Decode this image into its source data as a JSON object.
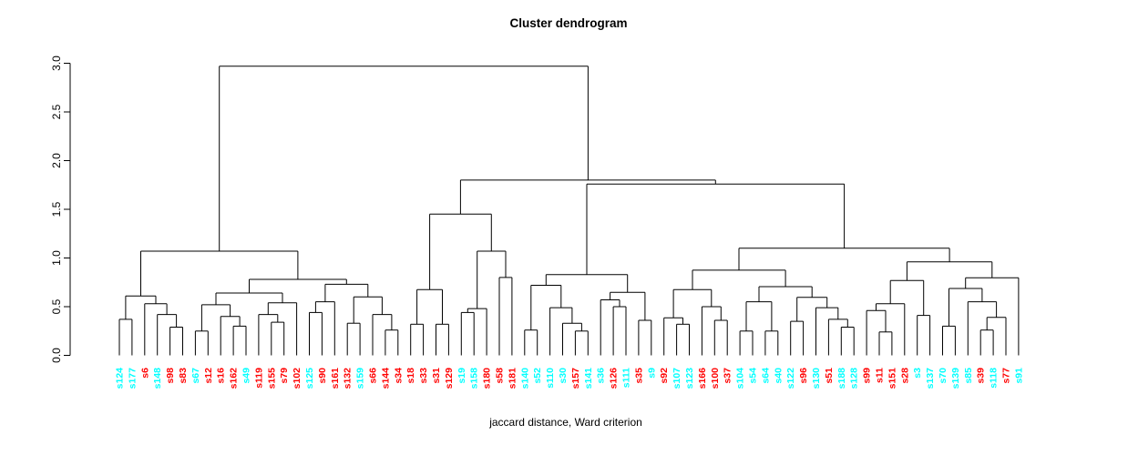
{
  "title": "Cluster dendrogram",
  "xlabel": "jaccard distance, Ward criterion",
  "chart_data": {
    "type": "dendrogram",
    "title": "Cluster dendrogram",
    "subtitle": "",
    "xlabel": "jaccard distance, Ward criterion",
    "ylabel": "",
    "grid": "off",
    "legend": "none",
    "y_axis": {
      "range": [
        0.0,
        3.0
      ],
      "ticks": [
        0.0,
        0.5,
        1.0,
        1.5,
        2.0,
        2.5,
        3.0
      ],
      "tick_labels": [
        "0.0",
        "0.5",
        "1.0",
        "1.5",
        "2.0",
        "2.5",
        "3.0"
      ]
    },
    "colors": {
      "line": "#000000",
      "text": "#000000",
      "cluster_cyan": "#00ffff",
      "cluster_red": "#ff0000"
    },
    "leaves": [
      {
        "label": "s124",
        "color": "cyan"
      },
      {
        "label": "s177",
        "color": "cyan"
      },
      {
        "label": "s6",
        "color": "red"
      },
      {
        "label": "s148",
        "color": "cyan"
      },
      {
        "label": "s98",
        "color": "red"
      },
      {
        "label": "s83",
        "color": "red"
      },
      {
        "label": "s67",
        "color": "cyan"
      },
      {
        "label": "s12",
        "color": "red"
      },
      {
        "label": "s16",
        "color": "red"
      },
      {
        "label": "s162",
        "color": "red"
      },
      {
        "label": "s49",
        "color": "cyan"
      },
      {
        "label": "s119",
        "color": "red"
      },
      {
        "label": "s155",
        "color": "red"
      },
      {
        "label": "s79",
        "color": "red"
      },
      {
        "label": "s102",
        "color": "red"
      },
      {
        "label": "s125",
        "color": "cyan"
      },
      {
        "label": "s90",
        "color": "red"
      },
      {
        "label": "s161",
        "color": "red"
      },
      {
        "label": "s132",
        "color": "red"
      },
      {
        "label": "s159",
        "color": "cyan"
      },
      {
        "label": "s66",
        "color": "red"
      },
      {
        "label": "s144",
        "color": "red"
      },
      {
        "label": "s34",
        "color": "red"
      },
      {
        "label": "s18",
        "color": "red"
      },
      {
        "label": "s33",
        "color": "red"
      },
      {
        "label": "s31",
        "color": "red"
      },
      {
        "label": "s129",
        "color": "red"
      },
      {
        "label": "s19",
        "color": "cyan"
      },
      {
        "label": "s158",
        "color": "cyan"
      },
      {
        "label": "s180",
        "color": "red"
      },
      {
        "label": "s58",
        "color": "red"
      },
      {
        "label": "s181",
        "color": "red"
      },
      {
        "label": "s140",
        "color": "cyan"
      },
      {
        "label": "s52",
        "color": "cyan"
      },
      {
        "label": "s110",
        "color": "cyan"
      },
      {
        "label": "s30",
        "color": "cyan"
      },
      {
        "label": "s157",
        "color": "red"
      },
      {
        "label": "s141",
        "color": "cyan"
      },
      {
        "label": "s36",
        "color": "cyan"
      },
      {
        "label": "s126",
        "color": "red"
      },
      {
        "label": "s111",
        "color": "cyan"
      },
      {
        "label": "s35",
        "color": "red"
      },
      {
        "label": "s9",
        "color": "cyan"
      },
      {
        "label": "s92",
        "color": "red"
      },
      {
        "label": "s107",
        "color": "cyan"
      },
      {
        "label": "s123",
        "color": "cyan"
      },
      {
        "label": "s166",
        "color": "red"
      },
      {
        "label": "s100",
        "color": "red"
      },
      {
        "label": "s37",
        "color": "red"
      },
      {
        "label": "s104",
        "color": "cyan"
      },
      {
        "label": "s54",
        "color": "cyan"
      },
      {
        "label": "s64",
        "color": "cyan"
      },
      {
        "label": "s40",
        "color": "cyan"
      },
      {
        "label": "s122",
        "color": "cyan"
      },
      {
        "label": "s96",
        "color": "red"
      },
      {
        "label": "s130",
        "color": "cyan"
      },
      {
        "label": "s51",
        "color": "red"
      },
      {
        "label": "s188",
        "color": "cyan"
      },
      {
        "label": "s128",
        "color": "cyan"
      },
      {
        "label": "s99",
        "color": "red"
      },
      {
        "label": "s11",
        "color": "red"
      },
      {
        "label": "s151",
        "color": "red"
      },
      {
        "label": "s28",
        "color": "red"
      },
      {
        "label": "s3",
        "color": "cyan"
      },
      {
        "label": "s137",
        "color": "cyan"
      },
      {
        "label": "s70",
        "color": "cyan"
      },
      {
        "label": "s139",
        "color": "cyan"
      },
      {
        "label": "s85",
        "color": "cyan"
      },
      {
        "label": "s39",
        "color": "red"
      },
      {
        "label": "s118",
        "color": "cyan"
      },
      {
        "label": "s77",
        "color": "red"
      },
      {
        "label": "s91",
        "color": "cyan"
      }
    ],
    "merges": [
      2.97,
      [
        1.07,
        [
          0.61,
          [
            0.37,
            "s124",
            "s177"
          ],
          [
            0.53,
            "s6",
            [
              0.42,
              "s148",
              [
                0.29,
                "s98",
                "s83"
              ]
            ]
          ]
        ],
        [
          0.78,
          [
            0.64,
            [
              0.52,
              [
                0.25,
                "s67",
                "s12"
              ],
              [
                0.4,
                "s16",
                [
                  0.3,
                  "s162",
                  "s49"
                ]
              ]
            ],
            [
              0.54,
              [
                0.42,
                "s119",
                [
                  0.34,
                  "s155",
                  "s79"
                ]
              ],
              "s102"
            ]
          ],
          [
            0.73,
            [
              0.55,
              [
                0.44,
                "s125",
                "s90"
              ],
              "s161"
            ],
            [
              0.6,
              [
                0.33,
                "s132",
                "s159"
              ],
              [
                0.42,
                "s66",
                [
                  0.26,
                  "s144",
                  "s34"
                ]
              ]
            ]
          ]
        ]
      ],
      [
        1.8,
        [
          1.45,
          [
            0.675,
            [
              0.32,
              "s18",
              "s33"
            ],
            [
              0.32,
              "s31",
              "s129"
            ]
          ],
          [
            1.07,
            [
              0.48,
              [
                0.44,
                "s19",
                "s158"
              ],
              "s180"
            ],
            [
              0.8,
              "s58",
              "s181"
            ]
          ]
        ],
        [
          1.76,
          [
            0.83,
            [
              0.72,
              [
                0.26,
                "s140",
                "s52"
              ],
              [
                0.49,
                "s110",
                [
                  0.33,
                  "s30",
                  [
                    0.25,
                    "s157",
                    "s141"
                  ]
                ]
              ]
            ],
            [
              0.647,
              [
                0.57,
                "s36",
                [
                  0.5,
                  "s126",
                  "s111"
                ]
              ],
              [
                0.36,
                "s35",
                "s9"
              ]
            ]
          ],
          [
            1.1,
            [
              0.875,
              [
                0.675,
                [
                  0.385,
                  "s92",
                  [
                    0.32,
                    "s107",
                    "s123"
                  ]
                ],
                [
                  0.5,
                  "s166",
                  [
                    0.36,
                    "s100",
                    "s37"
                  ]
                ]
              ],
              [
                0.706,
                [
                  0.55,
                  [
                    0.25,
                    "s104",
                    "s54"
                  ],
                  [
                    0.25,
                    "s64",
                    "s40"
                  ]
                ],
                [
                  0.596,
                  [
                    0.35,
                    "s122",
                    "s96"
                  ],
                  [
                    0.49,
                    "s130",
                    [
                      0.37,
                      "s51",
                      [
                        0.29,
                        "s188",
                        "s128"
                      ]
                    ]
                  ]
                ]
              ]
            ],
            [
              0.96,
              [
                0.768,
                [
                  0.53,
                  [
                    0.46,
                    "s99",
                    [
                      0.24,
                      "s11",
                      "s151"
                    ]
                  ],
                  "s28"
                ],
                [
                  0.41,
                  "s3",
                  "s137"
                ]
              ],
              [
                0.796,
                [
                  0.687,
                  [
                    0.3,
                    "s70",
                    "s139"
                  ],
                  [
                    0.55,
                    "s85",
                    [
                      0.39,
                      [
                        0.26,
                        "s39",
                        "s118"
                      ],
                      "s77"
                    ]
                  ]
                ],
                "s91"
              ]
            ]
          ]
        ]
      ]
    ]
  }
}
